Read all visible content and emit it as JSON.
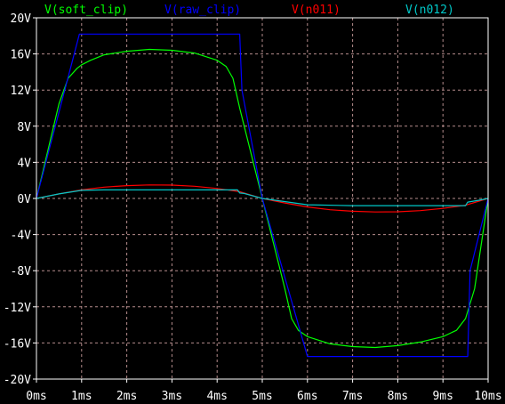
{
  "chart_data": {
    "type": "line",
    "title": "",
    "xlabel": "",
    "ylabel": "",
    "x_unit": "ms",
    "y_unit": "V",
    "xlim": [
      0,
      10
    ],
    "ylim": [
      -20,
      20
    ],
    "x_ticks": [
      "0ms",
      "1ms",
      "2ms",
      "3ms",
      "4ms",
      "5ms",
      "6ms",
      "7ms",
      "8ms",
      "9ms",
      "10ms"
    ],
    "y_ticks": [
      "20V",
      "16V",
      "12V",
      "8V",
      "4V",
      "0V",
      "-4V",
      "-8V",
      "-12V",
      "-16V",
      "-20V"
    ],
    "grid": true,
    "legend": "top",
    "colors": {
      "background": "#000000",
      "axis": "#ffffff",
      "grid": "#b58c8c",
      "label": "#ffffff"
    },
    "series": [
      {
        "name": "V(soft_clip)",
        "color": "#00ff00",
        "x": [
          0,
          0.5,
          0.7,
          0.9,
          1.0,
          1.2,
          1.5,
          2.0,
          2.5,
          3.0,
          3.5,
          4.0,
          4.2,
          4.35,
          4.5,
          5.0,
          5.5,
          5.65,
          5.8,
          6.0,
          6.5,
          7.0,
          7.5,
          8.0,
          8.5,
          9.0,
          9.3,
          9.5,
          9.7,
          10.0
        ],
        "y": [
          0,
          10.5,
          13.3,
          14.4,
          14.8,
          15.3,
          15.9,
          16.3,
          16.5,
          16.4,
          16.1,
          15.3,
          14.6,
          13.3,
          10.0,
          0,
          -10.0,
          -13.3,
          -14.6,
          -15.3,
          -16.1,
          -16.4,
          -16.5,
          -16.3,
          -15.9,
          -15.3,
          -14.6,
          -13.3,
          -10.0,
          0
        ]
      },
      {
        "name": "V(raw_clip)",
        "color": "#0000ff",
        "x": [
          0,
          0.95,
          4.5,
          4.55,
          5.0,
          6.0,
          9.55,
          9.6,
          10.0
        ],
        "y": [
          0,
          18.2,
          18.2,
          12.0,
          0,
          -17.5,
          -17.5,
          -8.0,
          0
        ]
      },
      {
        "name": "V(n011)",
        "color": "#ff0000",
        "x": [
          0,
          0.5,
          1.0,
          1.5,
          2.0,
          2.5,
          3.0,
          3.5,
          4.0,
          4.5,
          5.0,
          5.5,
          6.0,
          6.5,
          7.0,
          7.5,
          8.0,
          8.5,
          9.0,
          9.5,
          10.0
        ],
        "y": [
          0,
          0.5,
          0.95,
          1.25,
          1.42,
          1.5,
          1.48,
          1.35,
          1.1,
          0.75,
          0,
          -0.5,
          -0.95,
          -1.25,
          -1.42,
          -1.5,
          -1.48,
          -1.35,
          -1.1,
          -0.75,
          0
        ]
      },
      {
        "name": "V(n012)",
        "color": "#00c8c8",
        "x": [
          0,
          0.5,
          1.0,
          1.5,
          2.0,
          3.0,
          4.0,
          4.45,
          4.5,
          4.6,
          5.0,
          6.0,
          7.0,
          8.0,
          9.0,
          9.5,
          9.55,
          9.8,
          10.0
        ],
        "y": [
          0,
          0.5,
          0.9,
          0.95,
          0.95,
          0.95,
          0.95,
          0.95,
          0.6,
          0.55,
          0,
          -0.7,
          -0.8,
          -0.8,
          -0.8,
          -0.8,
          -0.4,
          -0.2,
          0
        ]
      }
    ]
  }
}
